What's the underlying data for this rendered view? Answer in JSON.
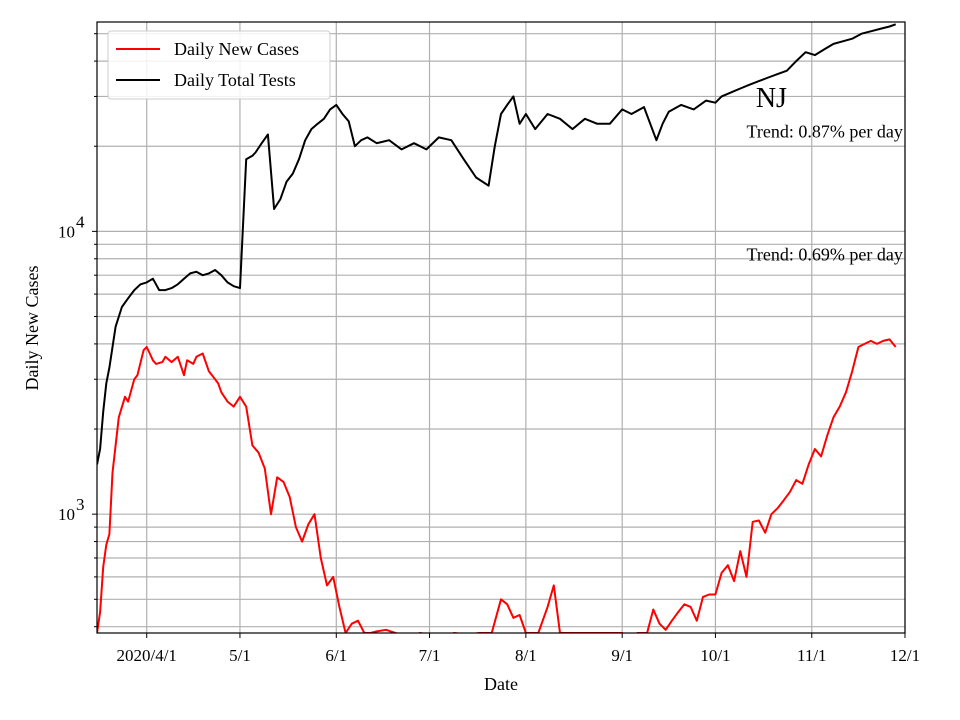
{
  "chart_data": {
    "type": "line",
    "title": "",
    "xlabel": "Date",
    "ylabel": "Daily New Cases",
    "yscale": "log",
    "ylim": [
      380,
      55000
    ],
    "xlim": [
      "2020-03-16",
      "2020-12-01"
    ],
    "grid": true,
    "legend_position": "top-left",
    "x_ticks": [
      {
        "date": "2020-04-01",
        "label": "2020/4/1"
      },
      {
        "date": "2020-05-01",
        "label": "5/1"
      },
      {
        "date": "2020-06-01",
        "label": "6/1"
      },
      {
        "date": "2020-07-01",
        "label": "7/1"
      },
      {
        "date": "2020-08-01",
        "label": "8/1"
      },
      {
        "date": "2020-09-01",
        "label": "9/1"
      },
      {
        "date": "2020-10-01",
        "label": "10/1"
      },
      {
        "date": "2020-11-01",
        "label": "11/1"
      },
      {
        "date": "2020-12-01",
        "label": "12/1"
      }
    ],
    "y_major_ticks": [
      {
        "value": 1000,
        "base": "10",
        "exp": "3"
      },
      {
        "value": 10000,
        "base": "10",
        "exp": "4"
      }
    ],
    "annotations": [
      {
        "text": "NJ",
        "role": "state",
        "date": "2020-10-14",
        "value": 27500
      },
      {
        "text": "Trend: 0.87% per day",
        "role": "trend",
        "date": "2020-10-11",
        "value": 21500
      },
      {
        "text": "Trend: 0.69% per day",
        "role": "trend",
        "date": "2020-10-11",
        "value": 7900
      }
    ],
    "series": [
      {
        "name": "Daily New Cases",
        "color": "#ff0000",
        "x": [
          "2020-03-16",
          "2020-03-17",
          "2020-03-18",
          "2020-03-19",
          "2020-03-20",
          "2020-03-21",
          "2020-03-23",
          "2020-03-25",
          "2020-03-26",
          "2020-03-28",
          "2020-03-29",
          "2020-03-31",
          "2020-04-01",
          "2020-04-02",
          "2020-04-03",
          "2020-04-04",
          "2020-04-06",
          "2020-04-07",
          "2020-04-09",
          "2020-04-11",
          "2020-04-13",
          "2020-04-14",
          "2020-04-16",
          "2020-04-17",
          "2020-04-19",
          "2020-04-21",
          "2020-04-22",
          "2020-04-24",
          "2020-04-25",
          "2020-04-27",
          "2020-04-29",
          "2020-05-01",
          "2020-05-03",
          "2020-05-05",
          "2020-05-07",
          "2020-05-09",
          "2020-05-11",
          "2020-05-13",
          "2020-05-15",
          "2020-05-17",
          "2020-05-19",
          "2020-05-21",
          "2020-05-23",
          "2020-05-25",
          "2020-05-27",
          "2020-05-29",
          "2020-05-31",
          "2020-06-02",
          "2020-06-04",
          "2020-06-06",
          "2020-06-08",
          "2020-06-10",
          "2020-06-12",
          "2020-06-14",
          "2020-06-17",
          "2020-06-20",
          "2020-06-24",
          "2020-06-28",
          "2020-07-01",
          "2020-07-05",
          "2020-07-09",
          "2020-07-13",
          "2020-07-17",
          "2020-07-21",
          "2020-07-24",
          "2020-07-26",
          "2020-07-28",
          "2020-07-30",
          "2020-08-01",
          "2020-08-03",
          "2020-08-05",
          "2020-08-08",
          "2020-08-10",
          "2020-08-12",
          "2020-08-14",
          "2020-08-17",
          "2020-08-21",
          "2020-08-25",
          "2020-08-29",
          "2020-09-01",
          "2020-09-03",
          "2020-09-06",
          "2020-09-09",
          "2020-09-11",
          "2020-09-13",
          "2020-09-15",
          "2020-09-17",
          "2020-09-19",
          "2020-09-21",
          "2020-09-23",
          "2020-09-25",
          "2020-09-27",
          "2020-09-29",
          "2020-10-01",
          "2020-10-03",
          "2020-10-05",
          "2020-10-07",
          "2020-10-09",
          "2020-10-11",
          "2020-10-13",
          "2020-10-15",
          "2020-10-17",
          "2020-10-19",
          "2020-10-21",
          "2020-10-23",
          "2020-10-25",
          "2020-10-27",
          "2020-10-29",
          "2020-10-31",
          "2020-11-02",
          "2020-11-04",
          "2020-11-06",
          "2020-11-08",
          "2020-11-10",
          "2020-11-12",
          "2020-11-14",
          "2020-11-16",
          "2020-11-18",
          "2020-11-20",
          "2020-11-22",
          "2020-11-24",
          "2020-11-26",
          "2020-11-28"
        ],
        "values": [
          380,
          450,
          650,
          780,
          850,
          1400,
          2200,
          2600,
          2500,
          3000,
          3100,
          3800,
          3900,
          3700,
          3500,
          3400,
          3450,
          3600,
          3450,
          3600,
          3100,
          3500,
          3400,
          3600,
          3700,
          3200,
          3100,
          2900,
          2700,
          2500,
          2400,
          2600,
          2400,
          1750,
          1650,
          1450,
          1000,
          1350,
          1300,
          1150,
          900,
          800,
          920,
          1000,
          700,
          560,
          600,
          470,
          380,
          410,
          420,
          380,
          380,
          385,
          390,
          380,
          370,
          380,
          375,
          370,
          380,
          375,
          380,
          380,
          500,
          480,
          430,
          440,
          380,
          380,
          380,
          470,
          560,
          380,
          380,
          380,
          380,
          380,
          380,
          380,
          370,
          380,
          380,
          460,
          410,
          390,
          420,
          450,
          480,
          470,
          420,
          510,
          520,
          520,
          620,
          660,
          580,
          740,
          600,
          940,
          950,
          860,
          1000,
          1050,
          1120,
          1200,
          1320,
          1280,
          1500,
          1700,
          1600,
          1900,
          2200,
          2400,
          2700,
          3200,
          3900,
          4000,
          4100,
          4000,
          4100,
          4150,
          3900
        ]
      },
      {
        "name": "Daily Total Tests",
        "color": "#000000",
        "x": [
          "2020-03-16",
          "2020-03-17",
          "2020-03-18",
          "2020-03-19",
          "2020-03-20",
          "2020-03-22",
          "2020-03-24",
          "2020-03-26",
          "2020-03-28",
          "2020-03-30",
          "2020-04-01",
          "2020-04-03",
          "2020-04-05",
          "2020-04-07",
          "2020-04-09",
          "2020-04-11",
          "2020-04-13",
          "2020-04-15",
          "2020-04-17",
          "2020-04-19",
          "2020-04-21",
          "2020-04-23",
          "2020-04-25",
          "2020-04-27",
          "2020-04-29",
          "2020-05-01",
          "2020-05-03",
          "2020-05-05",
          "2020-05-06",
          "2020-05-08",
          "2020-05-10",
          "2020-05-12",
          "2020-05-14",
          "2020-05-16",
          "2020-05-18",
          "2020-05-20",
          "2020-05-22",
          "2020-05-24",
          "2020-05-26",
          "2020-05-28",
          "2020-05-30",
          "2020-06-01",
          "2020-06-03",
          "2020-06-05",
          "2020-06-07",
          "2020-06-09",
          "2020-06-11",
          "2020-06-14",
          "2020-06-18",
          "2020-06-22",
          "2020-06-26",
          "2020-06-30",
          "2020-07-04",
          "2020-07-08",
          "2020-07-12",
          "2020-07-16",
          "2020-07-20",
          "2020-07-22",
          "2020-07-24",
          "2020-07-26",
          "2020-07-28",
          "2020-07-30",
          "2020-08-01",
          "2020-08-04",
          "2020-08-08",
          "2020-08-12",
          "2020-08-16",
          "2020-08-20",
          "2020-08-24",
          "2020-08-28",
          "2020-09-01",
          "2020-09-04",
          "2020-09-08",
          "2020-09-12",
          "2020-09-14",
          "2020-09-16",
          "2020-09-20",
          "2020-09-24",
          "2020-09-28",
          "2020-10-01",
          "2020-10-03",
          "2020-10-06",
          "2020-10-09",
          "2020-10-12",
          "2020-10-15",
          "2020-10-18",
          "2020-10-21",
          "2020-10-24",
          "2020-10-27",
          "2020-10-30",
          "2020-11-02",
          "2020-11-05",
          "2020-11-08",
          "2020-11-11",
          "2020-11-14",
          "2020-11-17",
          "2020-11-20",
          "2020-11-23",
          "2020-11-26",
          "2020-11-28"
        ],
        "values": [
          1500,
          1700,
          2300,
          2900,
          3300,
          4600,
          5400,
          5800,
          6200,
          6500,
          6600,
          6800,
          6200,
          6200,
          6300,
          6500,
          6800,
          7100,
          7200,
          7000,
          7100,
          7300,
          7000,
          6600,
          6400,
          6300,
          18000,
          18500,
          19000,
          20500,
          22000,
          12000,
          13000,
          15000,
          16000,
          18000,
          21000,
          23000,
          24000,
          25000,
          27000,
          28000,
          26000,
          24500,
          20000,
          21000,
          21500,
          20500,
          21000,
          19500,
          20500,
          19500,
          21500,
          21000,
          18000,
          15500,
          14500,
          20000,
          26000,
          28000,
          30000,
          24000,
          26000,
          23000,
          26000,
          25000,
          23000,
          25000,
          24000,
          24000,
          27000,
          26000,
          27500,
          21000,
          24000,
          26500,
          28000,
          27000,
          29000,
          28500,
          30000,
          31000,
          32000,
          33000,
          34000,
          35000,
          36000,
          37000,
          40000,
          43000,
          42000,
          44000,
          46000,
          47000,
          48000,
          50000,
          51000,
          52000,
          53000,
          54000
        ]
      }
    ]
  }
}
